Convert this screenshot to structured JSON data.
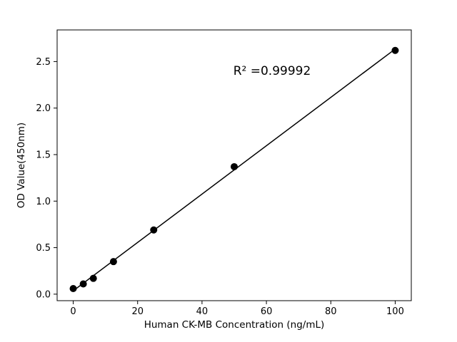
{
  "figure": {
    "background": "#ffffff"
  },
  "chart_data": {
    "type": "scatter",
    "title": "",
    "xlabel": "Human CK-MB Concentration (ng/mL)",
    "ylabel": "OD Value(450nm)",
    "annotation": "R² =0.99992",
    "x": [
      0,
      3.125,
      6.25,
      12.5,
      25,
      50,
      100
    ],
    "y": [
      0.06,
      0.11,
      0.17,
      0.35,
      0.69,
      1.37,
      2.62
    ],
    "fit_line": true,
    "xlim": [
      -5,
      105
    ],
    "ylim": [
      -0.07,
      2.84
    ],
    "xticks": [
      "0",
      "20",
      "40",
      "60",
      "80",
      "100"
    ],
    "yticks": [
      "0.0",
      "0.5",
      "1.0",
      "1.5",
      "2.0",
      "2.5"
    ],
    "grid": false,
    "legend": "none",
    "marker_color": "#000000",
    "line_color": "#000000",
    "axis_color": "#000000"
  }
}
